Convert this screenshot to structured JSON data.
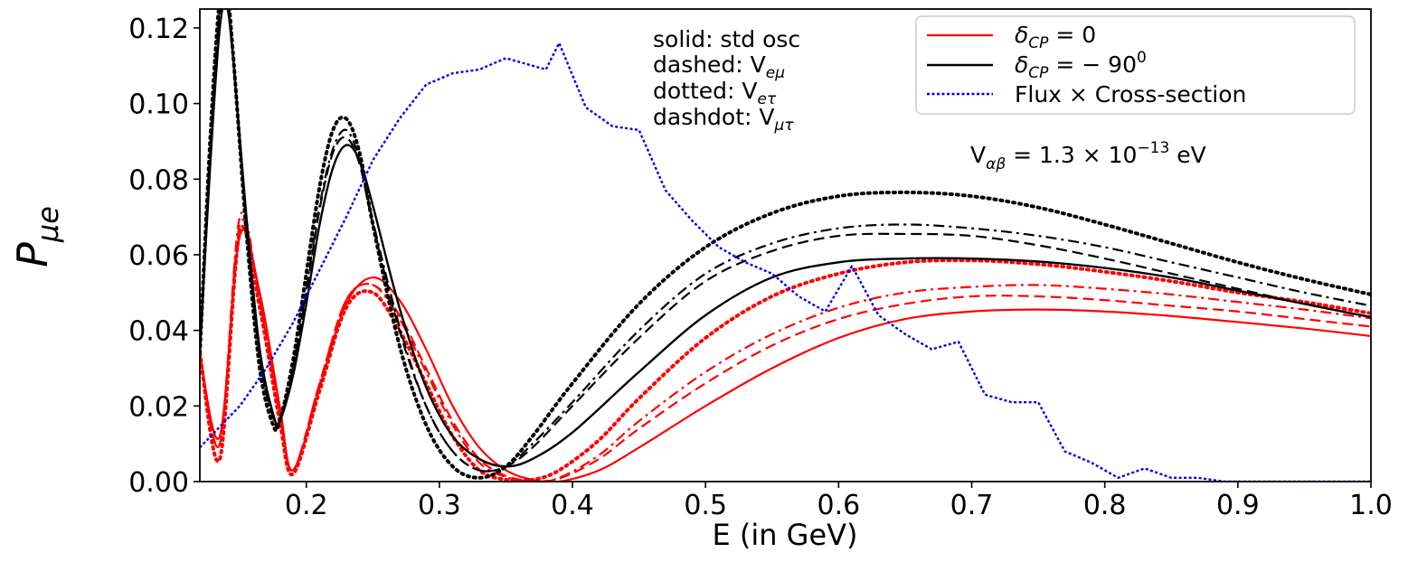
{
  "chart_data": {
    "type": "line",
    "xlabel": "E (in GeV)",
    "ylabel": "P",
    "ylabel_sub": "μe",
    "xlim": [
      0.12,
      1.0
    ],
    "ylim": [
      0.0,
      0.125
    ],
    "xticks": [
      "0.2",
      "0.3",
      "0.4",
      "0.5",
      "0.6",
      "0.7",
      "0.8",
      "0.9",
      "1.0"
    ],
    "xtick_values": [
      0.2,
      0.3,
      0.4,
      0.5,
      0.6,
      0.7,
      0.8,
      0.9,
      1.0
    ],
    "yticks": [
      "0.00",
      "0.02",
      "0.04",
      "0.06",
      "0.08",
      "0.10",
      "0.12"
    ],
    "ytick_values": [
      0.0,
      0.02,
      0.04,
      0.06,
      0.08,
      0.1,
      0.12
    ],
    "grid": false,
    "legend_position": "top-right",
    "legend": [
      {
        "label_main": "δ",
        "label_sub": "CP",
        "label_rest": " = 0",
        "color": "#ff0000",
        "style": "solid"
      },
      {
        "label_main": "δ",
        "label_sub": "CP",
        "label_rest": " = − 90",
        "label_sup": "0",
        "color": "#000000",
        "style": "solid"
      },
      {
        "label_main": "Flux × Cross-section",
        "label_sub": "",
        "label_rest": "",
        "color": "#0000ee",
        "style": "dotted"
      }
    ],
    "annotations": {
      "lines": [
        {
          "text": "solid: std osc",
          "sub": ""
        },
        {
          "text": "dashed: V",
          "sub": "eμ"
        },
        {
          "text": "dotted: V",
          "sub": "eτ"
        },
        {
          "text": "dashdot: V",
          "sub": "μτ"
        }
      ],
      "potential": {
        "prefix": "V",
        "sub": "αβ",
        "mid": " = 1.3 × 10",
        "sup": "−13",
        "suffix": " eV"
      }
    },
    "series": [
      {
        "color": "#ff0000",
        "style": "solid",
        "width": 2.2,
        "x": [
          0.12,
          0.135,
          0.15,
          0.165,
          0.18,
          0.19,
          0.21,
          0.23,
          0.25,
          0.27,
          0.29,
          0.31,
          0.33,
          0.35,
          0.37,
          0.39,
          0.42,
          0.45,
          0.5,
          0.55,
          0.6,
          0.65,
          0.7,
          0.75,
          0.8,
          0.85,
          0.9,
          0.95,
          1.0
        ],
        "y": [
          0.034,
          0.012,
          0.065,
          0.05,
          0.02,
          0.003,
          0.025,
          0.047,
          0.054,
          0.048,
          0.035,
          0.02,
          0.009,
          0.003,
          0.0005,
          0.0,
          0.003,
          0.009,
          0.02,
          0.03,
          0.038,
          0.043,
          0.045,
          0.0455,
          0.045,
          0.0438,
          0.0422,
          0.0405,
          0.0385
        ]
      },
      {
        "color": "#ff0000",
        "style": "dashed",
        "width": 2.2,
        "x": [
          0.12,
          0.135,
          0.15,
          0.165,
          0.18,
          0.19,
          0.21,
          0.23,
          0.25,
          0.27,
          0.29,
          0.31,
          0.33,
          0.35,
          0.37,
          0.39,
          0.42,
          0.45,
          0.5,
          0.55,
          0.6,
          0.65,
          0.7,
          0.75,
          0.8,
          0.85,
          0.9,
          0.95,
          1.0
        ],
        "y": [
          0.034,
          0.01,
          0.068,
          0.048,
          0.018,
          0.003,
          0.026,
          0.048,
          0.052,
          0.044,
          0.03,
          0.016,
          0.006,
          0.0015,
          0.0002,
          0.0008,
          0.006,
          0.014,
          0.026,
          0.036,
          0.043,
          0.047,
          0.049,
          0.049,
          0.048,
          0.0465,
          0.045,
          0.043,
          0.041
        ]
      },
      {
        "color": "#ff0000",
        "style": "dashdot",
        "width": 2.2,
        "x": [
          0.12,
          0.135,
          0.15,
          0.165,
          0.18,
          0.19,
          0.21,
          0.23,
          0.25,
          0.27,
          0.29,
          0.31,
          0.33,
          0.35,
          0.37,
          0.39,
          0.42,
          0.45,
          0.5,
          0.55,
          0.6,
          0.65,
          0.7,
          0.75,
          0.8,
          0.85,
          0.9,
          0.95,
          1.0
        ],
        "y": [
          0.034,
          0.01,
          0.07,
          0.048,
          0.018,
          0.003,
          0.026,
          0.048,
          0.052,
          0.043,
          0.029,
          0.015,
          0.005,
          0.0012,
          0.0001,
          0.001,
          0.007,
          0.016,
          0.029,
          0.039,
          0.046,
          0.05,
          0.0515,
          0.052,
          0.051,
          0.0495,
          0.0475,
          0.0455,
          0.0432
        ]
      },
      {
        "color": "#ff0000",
        "style": "dotted",
        "width": 4.0,
        "x": [
          0.12,
          0.135,
          0.15,
          0.165,
          0.18,
          0.19,
          0.21,
          0.23,
          0.25,
          0.27,
          0.29,
          0.31,
          0.33,
          0.35,
          0.37,
          0.39,
          0.42,
          0.45,
          0.5,
          0.55,
          0.6,
          0.65,
          0.7,
          0.75,
          0.8,
          0.85,
          0.9,
          0.95,
          1.0
        ],
        "y": [
          0.034,
          0.006,
          0.066,
          0.046,
          0.016,
          0.002,
          0.024,
          0.046,
          0.05,
          0.04,
          0.026,
          0.012,
          0.003,
          0.0005,
          0.0005,
          0.003,
          0.011,
          0.022,
          0.038,
          0.049,
          0.055,
          0.058,
          0.0585,
          0.0575,
          0.0555,
          0.053,
          0.05,
          0.0475,
          0.0445
        ]
      },
      {
        "color": "#000000",
        "style": "solid",
        "width": 2.4,
        "x": [
          0.12,
          0.128,
          0.135,
          0.14,
          0.145,
          0.155,
          0.165,
          0.175,
          0.18,
          0.19,
          0.2,
          0.21,
          0.22,
          0.23,
          0.24,
          0.25,
          0.27,
          0.29,
          0.31,
          0.33,
          0.35,
          0.37,
          0.4,
          0.45,
          0.5,
          0.55,
          0.6,
          0.65,
          0.7,
          0.75,
          0.8,
          0.85,
          0.9,
          0.95,
          1.0
        ],
        "y": [
          0.034,
          0.085,
          0.12,
          0.126,
          0.112,
          0.07,
          0.035,
          0.018,
          0.016,
          0.028,
          0.047,
          0.068,
          0.083,
          0.089,
          0.085,
          0.073,
          0.046,
          0.025,
          0.012,
          0.006,
          0.004,
          0.006,
          0.013,
          0.029,
          0.044,
          0.054,
          0.058,
          0.059,
          0.059,
          0.0582,
          0.0565,
          0.054,
          0.0505,
          0.047,
          0.0435
        ]
      },
      {
        "color": "#000000",
        "style": "dashed",
        "width": 2.2,
        "x": [
          0.12,
          0.128,
          0.135,
          0.14,
          0.145,
          0.155,
          0.165,
          0.175,
          0.18,
          0.19,
          0.2,
          0.21,
          0.22,
          0.23,
          0.24,
          0.25,
          0.27,
          0.29,
          0.31,
          0.33,
          0.35,
          0.37,
          0.4,
          0.45,
          0.5,
          0.55,
          0.6,
          0.65,
          0.7,
          0.75,
          0.8,
          0.85,
          0.9,
          0.95,
          1.0
        ],
        "y": [
          0.034,
          0.088,
          0.124,
          0.128,
          0.112,
          0.068,
          0.033,
          0.017,
          0.016,
          0.03,
          0.05,
          0.072,
          0.087,
          0.091,
          0.084,
          0.068,
          0.04,
          0.02,
          0.008,
          0.003,
          0.004,
          0.009,
          0.02,
          0.038,
          0.053,
          0.061,
          0.065,
          0.0655,
          0.065,
          0.0625,
          0.059,
          0.055,
          0.051,
          0.047,
          0.0435
        ]
      },
      {
        "color": "#000000",
        "style": "dashdot",
        "width": 2.2,
        "x": [
          0.12,
          0.128,
          0.135,
          0.14,
          0.145,
          0.155,
          0.165,
          0.175,
          0.18,
          0.19,
          0.2,
          0.21,
          0.22,
          0.23,
          0.24,
          0.25,
          0.27,
          0.29,
          0.31,
          0.33,
          0.35,
          0.37,
          0.4,
          0.45,
          0.5,
          0.55,
          0.6,
          0.65,
          0.7,
          0.75,
          0.8,
          0.85,
          0.9,
          0.95,
          1.0
        ],
        "y": [
          0.034,
          0.089,
          0.125,
          0.129,
          0.113,
          0.068,
          0.033,
          0.017,
          0.016,
          0.03,
          0.051,
          0.073,
          0.088,
          0.093,
          0.085,
          0.069,
          0.041,
          0.02,
          0.008,
          0.003,
          0.004,
          0.01,
          0.021,
          0.04,
          0.055,
          0.063,
          0.067,
          0.068,
          0.067,
          0.065,
          0.062,
          0.058,
          0.054,
          0.05,
          0.0465
        ]
      },
      {
        "color": "#000000",
        "style": "dotted",
        "width": 4.0,
        "x": [
          0.12,
          0.128,
          0.135,
          0.14,
          0.145,
          0.155,
          0.165,
          0.175,
          0.18,
          0.19,
          0.2,
          0.21,
          0.22,
          0.23,
          0.24,
          0.25,
          0.27,
          0.29,
          0.31,
          0.33,
          0.35,
          0.37,
          0.4,
          0.45,
          0.5,
          0.55,
          0.6,
          0.65,
          0.7,
          0.75,
          0.8,
          0.85,
          0.9,
          0.95,
          1.0
        ],
        "y": [
          0.034,
          0.092,
          0.128,
          0.131,
          0.113,
          0.066,
          0.03,
          0.015,
          0.016,
          0.032,
          0.055,
          0.078,
          0.093,
          0.096,
          0.087,
          0.068,
          0.036,
          0.015,
          0.004,
          0.001,
          0.004,
          0.012,
          0.026,
          0.047,
          0.062,
          0.071,
          0.0755,
          0.0765,
          0.0755,
          0.0725,
          0.068,
          0.063,
          0.058,
          0.0535,
          0.0495
        ]
      },
      {
        "color": "#0000ee",
        "style": "dotted",
        "width": 2.4,
        "x": [
          0.12,
          0.15,
          0.17,
          0.19,
          0.21,
          0.23,
          0.25,
          0.27,
          0.29,
          0.31,
          0.33,
          0.35,
          0.37,
          0.38,
          0.39,
          0.41,
          0.43,
          0.45,
          0.47,
          0.49,
          0.51,
          0.53,
          0.55,
          0.57,
          0.59,
          0.61,
          0.63,
          0.65,
          0.67,
          0.69,
          0.71,
          0.73,
          0.75,
          0.77,
          0.79,
          0.81,
          0.83,
          0.85,
          0.87,
          0.89,
          0.91,
          0.93,
          0.95,
          0.97,
          1.0
        ],
        "y": [
          0.009,
          0.02,
          0.03,
          0.042,
          0.056,
          0.07,
          0.085,
          0.096,
          0.105,
          0.108,
          0.109,
          0.112,
          0.11,
          0.109,
          0.116,
          0.099,
          0.094,
          0.093,
          0.077,
          0.069,
          0.062,
          0.058,
          0.055,
          0.049,
          0.045,
          0.057,
          0.044,
          0.039,
          0.035,
          0.037,
          0.023,
          0.021,
          0.021,
          0.008,
          0.005,
          0.001,
          0.0035,
          0.001,
          0.001,
          0.0,
          0.0,
          0.0,
          0.0,
          0.0,
          0.0
        ]
      }
    ]
  }
}
